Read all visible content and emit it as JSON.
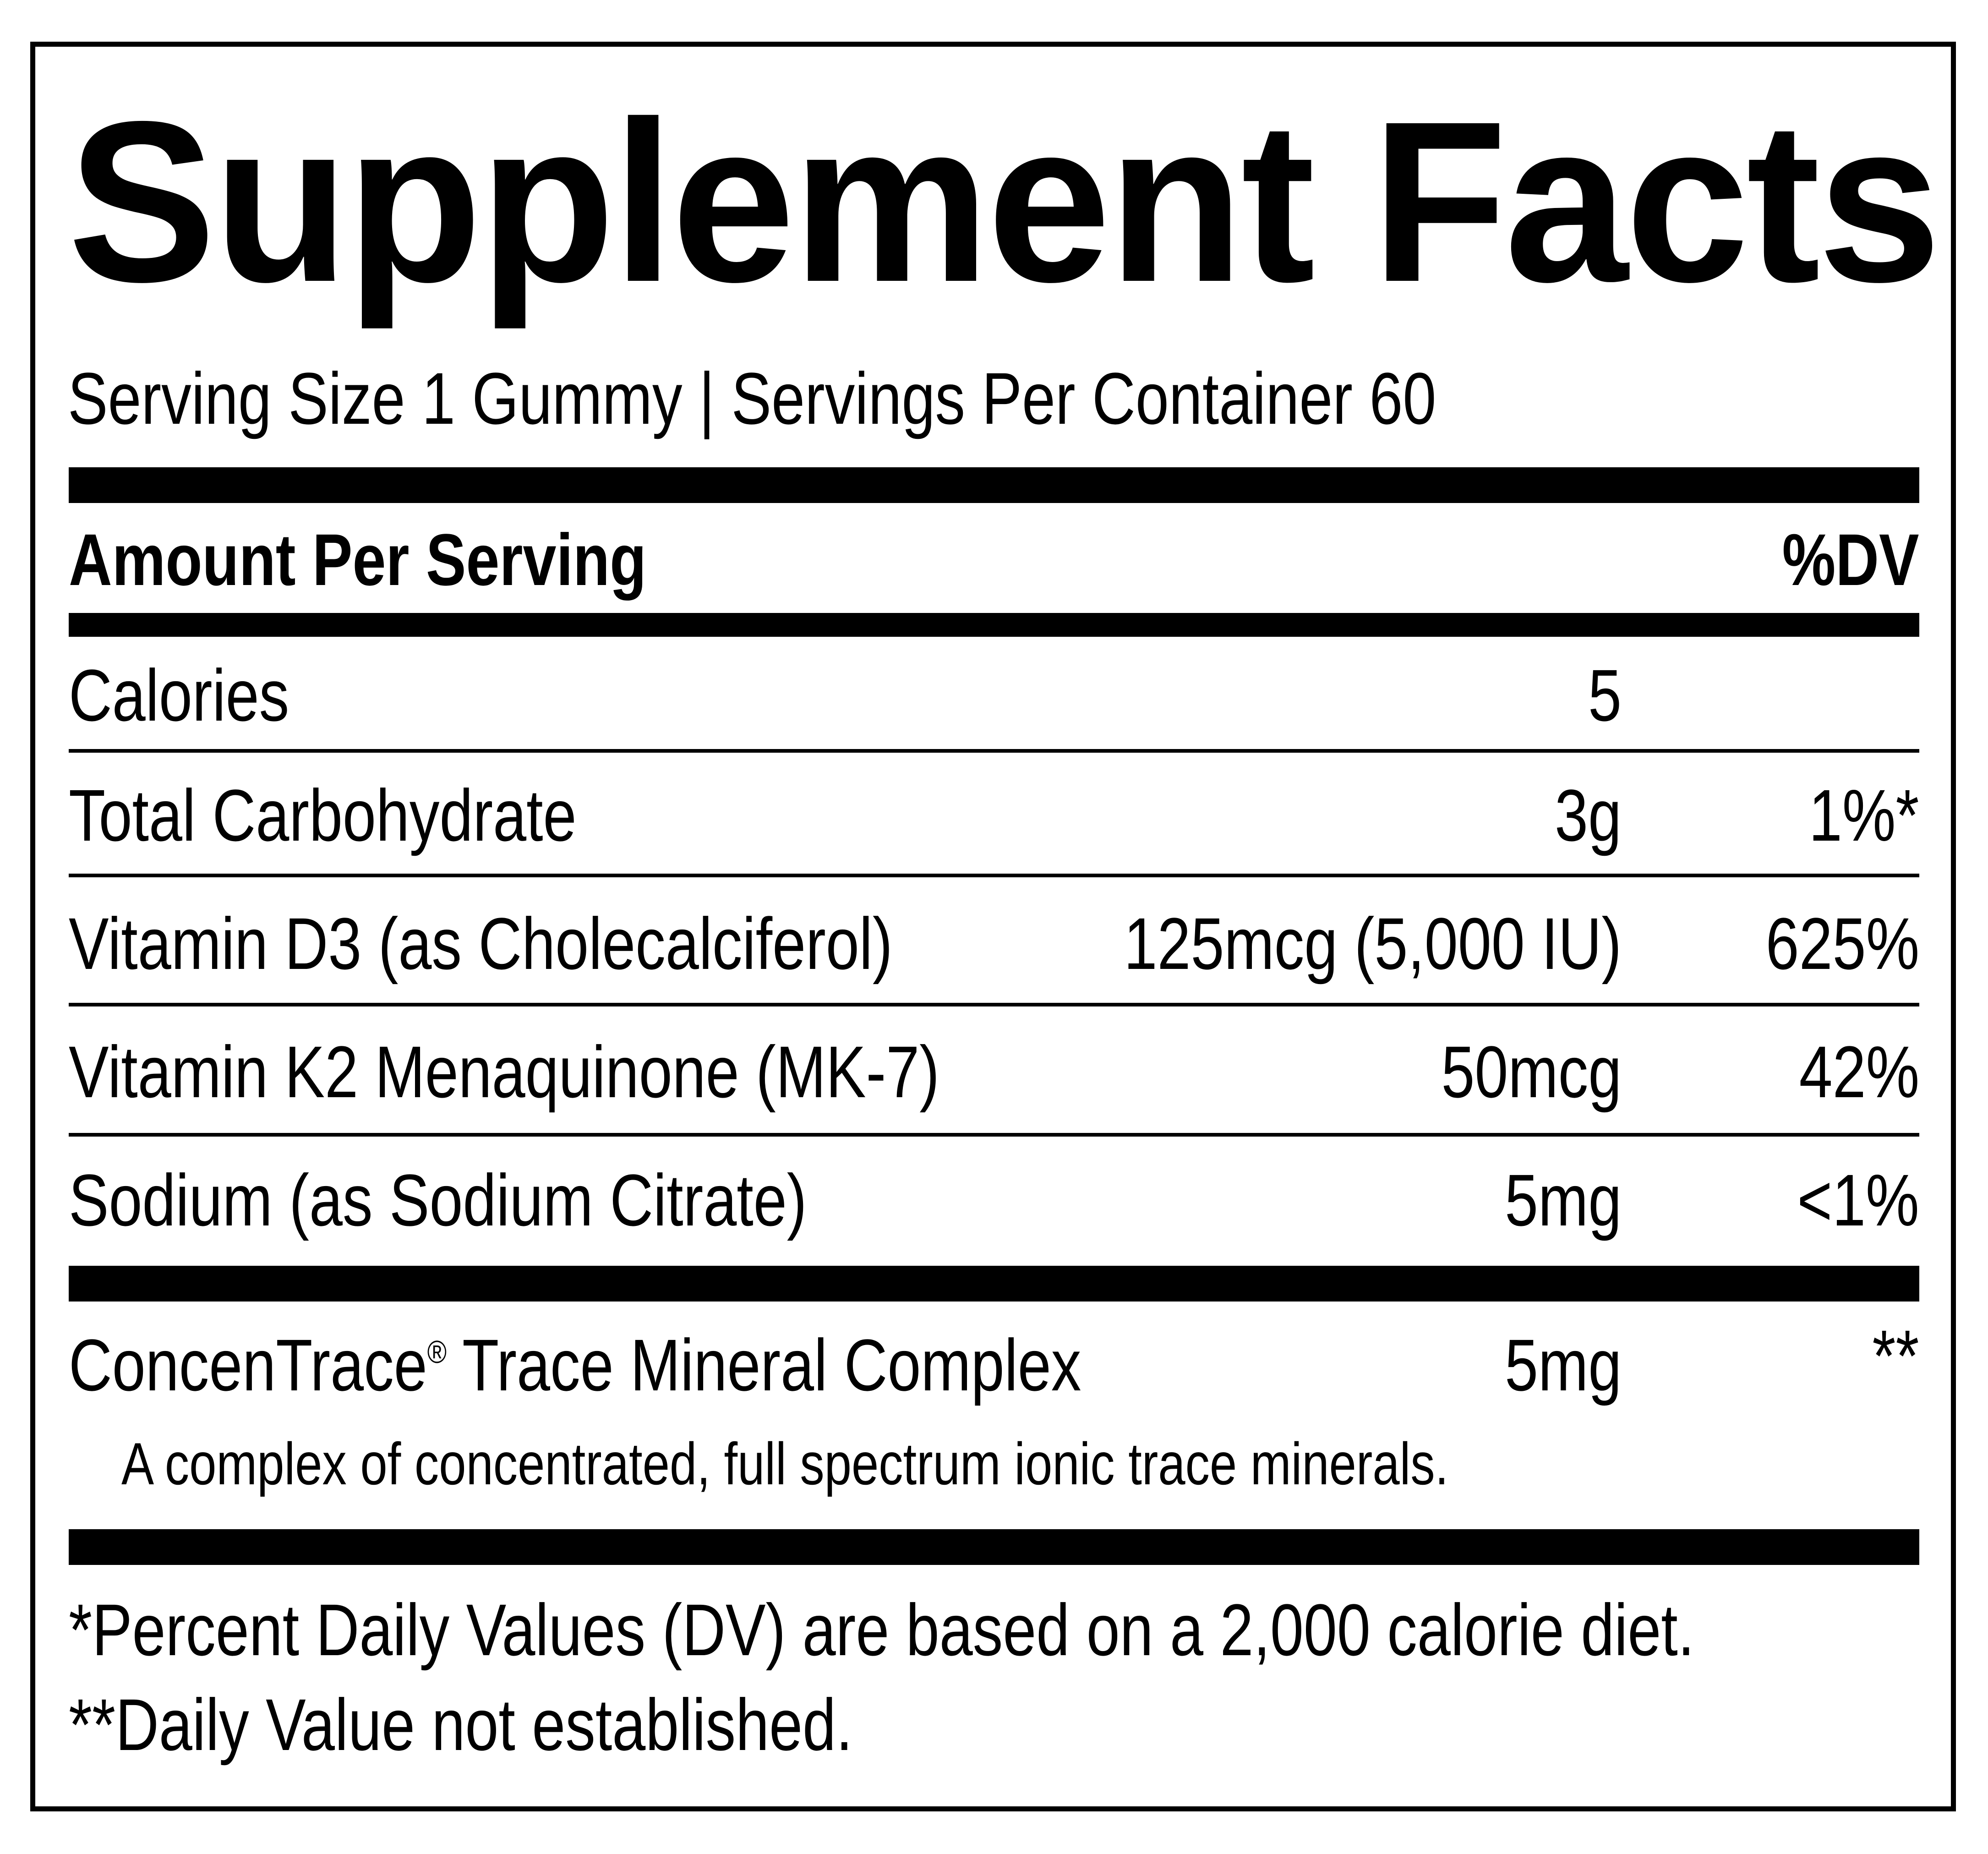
{
  "title": "Supplement Facts",
  "serving": "Serving Size 1 Gummy | Servings Per Container 60",
  "header": {
    "amount_label": "Amount Per Serving",
    "dv_label": "%DV"
  },
  "rows": [
    {
      "name": "Calories",
      "amount": "5",
      "dv": ""
    },
    {
      "name": "Total Carbohydrate",
      "amount": "3g",
      "dv": "1%*"
    },
    {
      "name": "Vitamin D3 (as Cholecalciferol)",
      "amount": "125mcg (5,000 IU)",
      "dv": "625%"
    },
    {
      "name": "Vitamin K2 Menaquinone (MK-7)",
      "amount": "50mcg",
      "dv": "42%"
    },
    {
      "name": "Sodium (as Sodium Citrate)",
      "amount": "5mg",
      "dv": "<1%"
    }
  ],
  "complex": {
    "name": "ConcenTrace",
    "registered": "®",
    "name_suffix": " Trace Mineral Complex",
    "amount": "5mg",
    "dv": "**",
    "description": "A complex of concentrated, full spectrum ionic trace minerals."
  },
  "footnotes": [
    "*Percent Daily Values (DV) are based on a 2,000 calorie diet.",
    "**Daily Value not established."
  ]
}
